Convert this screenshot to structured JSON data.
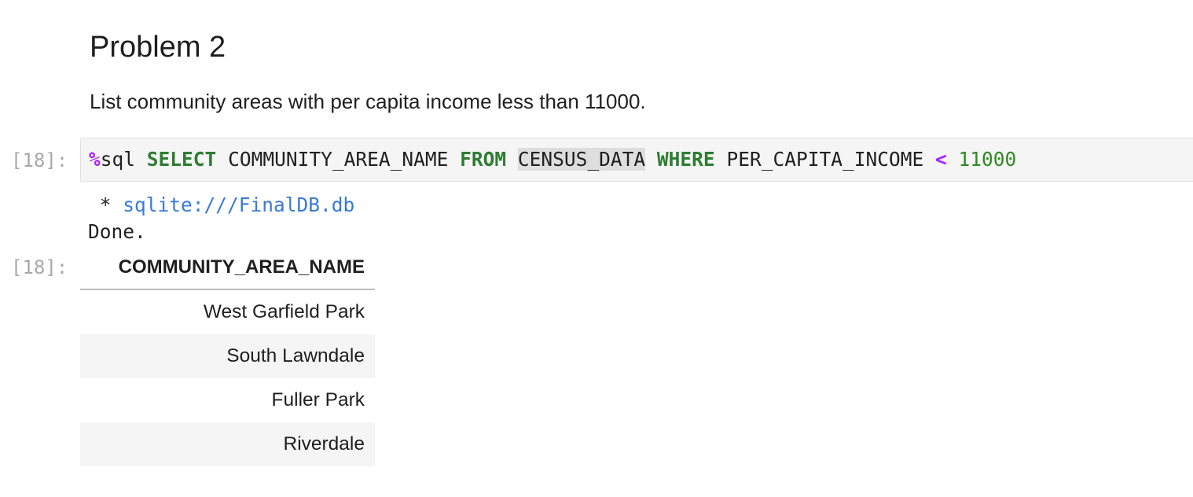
{
  "markdown": {
    "heading": "Problem 2",
    "paragraph": "List community areas with per capita income less than 11000."
  },
  "code_cell": {
    "prompt": "[18]:",
    "tokens": {
      "magic_symbol": "%",
      "magic_name": "sql",
      "select": "SELECT",
      "column": "COMMUNITY_AREA_NAME",
      "from": "FROM",
      "table": "CENSUS_DATA",
      "where": "WHERE",
      "condition_column": "PER_CAPITA_INCOME",
      "operator": "<",
      "value": "11000"
    }
  },
  "output": {
    "prompt": "[18]:",
    "connection_prefix": " * ",
    "connection": "sqlite:///FinalDB.db",
    "status": "Done.",
    "table": {
      "columns": [
        "COMMUNITY_AREA_NAME"
      ],
      "rows": [
        [
          "West Garfield Park"
        ],
        [
          "South Lawndale"
        ],
        [
          "Fuller Park"
        ],
        [
          "Riverdale"
        ]
      ]
    }
  },
  "colors": {
    "keyword": "#2e7d32",
    "magic": "#aa22ff",
    "number": "#2e8b22",
    "link": "#3a7bd5",
    "prompt": "#a8a8a8",
    "cell_background": "#f5f5f5"
  }
}
